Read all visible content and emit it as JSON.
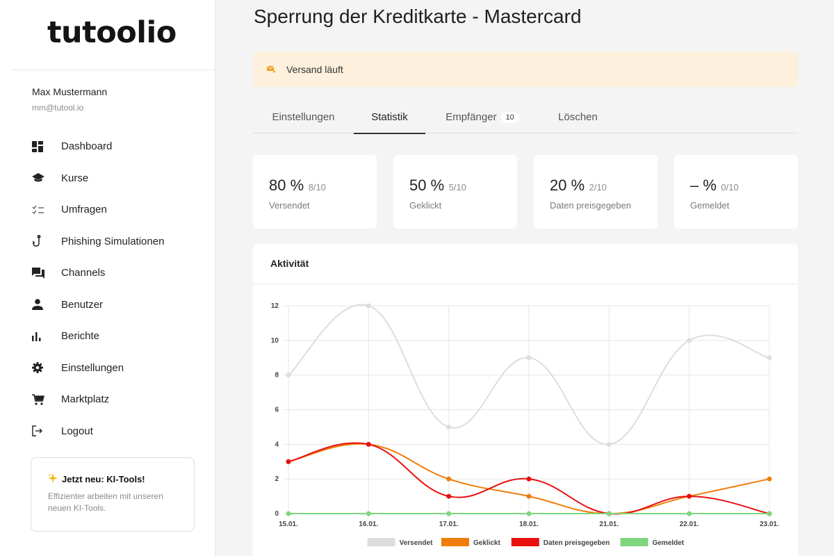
{
  "sidebar": {
    "logo": "tutoolio",
    "user": {
      "name": "Max Mustermann",
      "email": "mm@tutool.io"
    },
    "items": [
      {
        "label": "Dashboard",
        "icon": "dashboard-icon"
      },
      {
        "label": "Kurse",
        "icon": "graduation-cap-icon"
      },
      {
        "label": "Umfragen",
        "icon": "checklist-icon"
      },
      {
        "label": "Phishing Simulationen",
        "icon": "fishing-hook-icon"
      },
      {
        "label": "Channels",
        "icon": "chat-icon"
      },
      {
        "label": "Benutzer",
        "icon": "user-icon"
      },
      {
        "label": "Berichte",
        "icon": "bar-chart-icon"
      },
      {
        "label": "Einstellungen",
        "icon": "gear-icon"
      },
      {
        "label": "Marktplatz",
        "icon": "cart-icon"
      },
      {
        "label": "Logout",
        "icon": "logout-icon"
      }
    ],
    "promo": {
      "title": "Jetzt neu: KI-Tools!",
      "text": "Effizienter arbeiten mit unseren neuen KI-Tools."
    }
  },
  "main": {
    "title": "Sperrung der Kreditkarte - Mastercard",
    "banner": {
      "text": "Versand läuft",
      "icon": "envelope-send-icon",
      "color": "#fdf0dc",
      "icon_color": "#f0a020"
    },
    "tabs": [
      {
        "label": "Einstellungen"
      },
      {
        "label": "Statistik",
        "active": true
      },
      {
        "label": "Empfänger",
        "badge": "10"
      },
      {
        "label": "Löschen"
      }
    ],
    "stats": [
      {
        "value": "80 %",
        "sub": "8/10",
        "label": "Versendet"
      },
      {
        "value": "50 %",
        "sub": "5/10",
        "label": "Geklickt"
      },
      {
        "value": "20 %",
        "sub": "2/10",
        "label": "Daten preisgegeben"
      },
      {
        "value": "– %",
        "sub": "0/10",
        "label": "Gemeldet"
      }
    ],
    "activity_title": "Aktivität"
  },
  "chart_data": {
    "type": "line",
    "title": "Aktivität",
    "categories": [
      "15.01.",
      "16.01.",
      "17.01.",
      "18.01.",
      "21.01.",
      "22.01.",
      "23.01."
    ],
    "ylim": [
      0,
      12
    ],
    "yticks": [
      0,
      2,
      4,
      6,
      8,
      10,
      12
    ],
    "grid": true,
    "legend": "bottom",
    "series": [
      {
        "name": "Versendet",
        "color": "#dddddd",
        "values": [
          8,
          12,
          5,
          9,
          4,
          10,
          9
        ]
      },
      {
        "name": "Geklickt",
        "color": "#f07d0a",
        "values": [
          3,
          4,
          2,
          1,
          0,
          1,
          2
        ]
      },
      {
        "name": "Daten preisgegeben",
        "color": "#e8100f",
        "values": [
          3,
          4,
          1,
          2,
          0,
          1,
          0
        ]
      },
      {
        "name": "Gemeldet",
        "color": "#7ed67e",
        "values": [
          0,
          0,
          0,
          0,
          0,
          0,
          0
        ]
      }
    ]
  }
}
